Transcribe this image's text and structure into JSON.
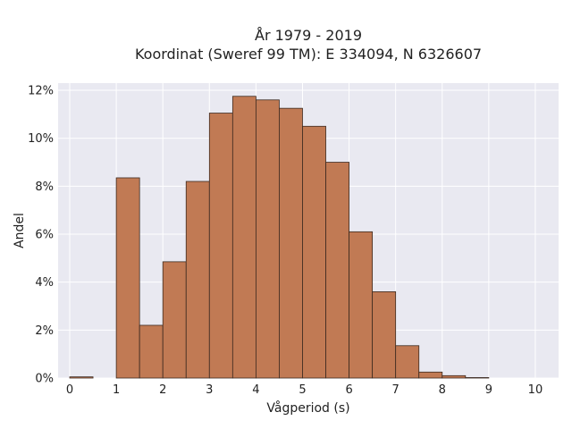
{
  "chart_data": {
    "type": "bar",
    "title_lines": [
      "År 1979 - 2019",
      "Koordinat (Sweref 99 TM): E 334094, N 6326607"
    ],
    "xlabel": "Vågperiod (s)",
    "ylabel": "Andel",
    "xlim": [
      -0.25,
      10.5
    ],
    "ylim": [
      0,
      12.3
    ],
    "x_ticks": [
      0,
      1,
      2,
      3,
      4,
      5,
      6,
      7,
      8,
      9,
      10
    ],
    "y_ticks": [
      0,
      2,
      4,
      6,
      8,
      10,
      12
    ],
    "y_tick_labels": [
      "0%",
      "2%",
      "4%",
      "6%",
      "8%",
      "10%",
      "12%"
    ],
    "bin_width": 0.5,
    "bins": [
      {
        "x0": 0.0,
        "value": 0.05
      },
      {
        "x0": 0.5,
        "value": 0.0
      },
      {
        "x0": 1.0,
        "value": 8.35
      },
      {
        "x0": 1.5,
        "value": 2.2
      },
      {
        "x0": 2.0,
        "value": 4.85
      },
      {
        "x0": 2.5,
        "value": 8.2
      },
      {
        "x0": 3.0,
        "value": 11.05
      },
      {
        "x0": 3.5,
        "value": 11.75
      },
      {
        "x0": 4.0,
        "value": 11.6
      },
      {
        "x0": 4.5,
        "value": 11.25
      },
      {
        "x0": 5.0,
        "value": 10.5
      },
      {
        "x0": 5.5,
        "value": 9.0
      },
      {
        "x0": 6.0,
        "value": 6.1
      },
      {
        "x0": 6.5,
        "value": 3.6
      },
      {
        "x0": 7.0,
        "value": 1.35
      },
      {
        "x0": 7.5,
        "value": 0.25
      },
      {
        "x0": 8.0,
        "value": 0.1
      },
      {
        "x0": 8.5,
        "value": 0.02
      }
    ],
    "grid": true,
    "colors": {
      "bar_fill": "#c17a54",
      "bar_edge": "#3c2a20",
      "plot_background": "#e9e9f1",
      "grid": "#ffffff"
    }
  }
}
